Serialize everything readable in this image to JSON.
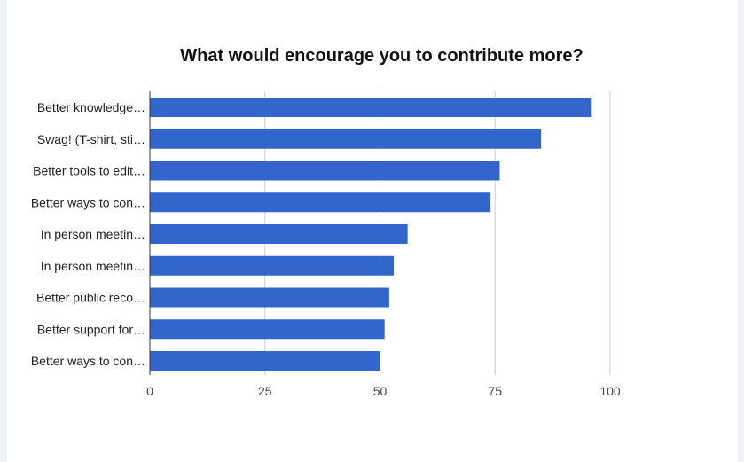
{
  "chart_data": {
    "type": "bar",
    "orientation": "horizontal",
    "title": "What would encourage you to contribute more?",
    "categories": [
      "Better knowledge…",
      "Swag! (T-shirt, sti…",
      "Better tools to edit…",
      "Better ways to con…",
      "In person meetin…",
      "In person meetin…",
      "Better public reco…",
      "Better support for…",
      "Better ways to con…"
    ],
    "values": [
      96,
      85,
      76,
      74,
      56,
      53,
      52,
      51,
      50
    ],
    "xlim": [
      0,
      100
    ],
    "xticks": [
      0,
      25,
      50,
      75,
      100
    ],
    "grid": true,
    "bar_color": "#3366cc"
  }
}
